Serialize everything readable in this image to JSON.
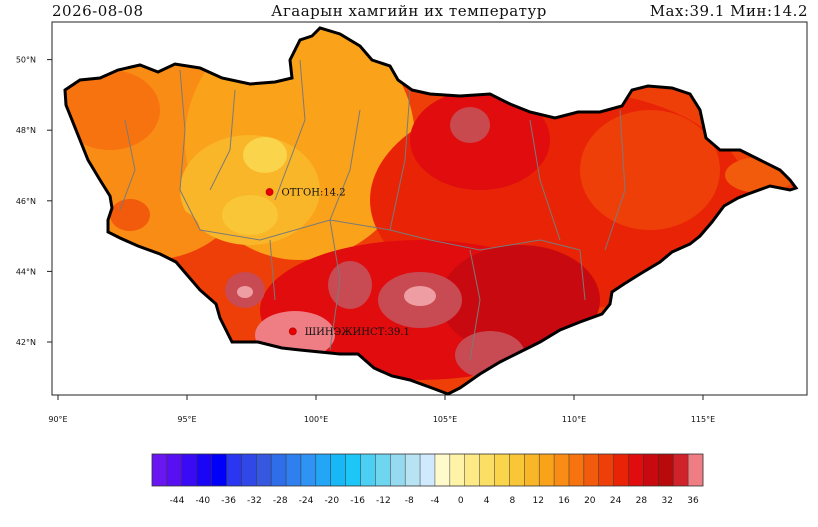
{
  "header": {
    "date": "2026-08-08",
    "title": "Агаарын хамгийн их температур",
    "stats": "Max:39.1 Мин:14.2"
  },
  "map": {
    "lon_ticks": [
      {
        "value": 90,
        "label": "90°E"
      },
      {
        "value": 95,
        "label": "95°E"
      },
      {
        "value": 100,
        "label": "100°E"
      },
      {
        "value": 105,
        "label": "105°E"
      },
      {
        "value": 110,
        "label": "110°E"
      },
      {
        "value": 115,
        "label": "115°E"
      }
    ],
    "lat_ticks": [
      {
        "value": 42,
        "label": "42°N"
      },
      {
        "value": 44,
        "label": "44°N"
      },
      {
        "value": 46,
        "label": "46°N"
      },
      {
        "value": 48,
        "label": "48°N"
      },
      {
        "value": 50,
        "label": "50°N"
      }
    ],
    "stations": [
      {
        "name": "ОТГОН",
        "value": "14.2",
        "label": "ОТГОН:14.2",
        "lon": 98.2,
        "lat": 46.25
      },
      {
        "name": "ШИНЭЖИНСТ",
        "value": "39.1",
        "label": "ШИНЭЖИНСТ:39.1",
        "lon": 99.1,
        "lat": 42.3
      }
    ]
  },
  "colorbar": {
    "labels": [
      "-44",
      "-40",
      "-36",
      "-32",
      "-28",
      "-24",
      "-20",
      "-16",
      "-12",
      "-8",
      "-4",
      "0",
      "4",
      "8",
      "12",
      "16",
      "20",
      "24",
      "28",
      "32",
      "36"
    ],
    "colors": [
      "#6a16f0",
      "#5810f2",
      "#3a0af4",
      "#1b05f6",
      "#0000f8",
      "#2a36ef",
      "#3148e8",
      "#3558df",
      "#2f6ee9",
      "#2f80ee",
      "#2e93f2",
      "#22a6f5",
      "#17b8f5",
      "#1cc6f6",
      "#4ccff3",
      "#6fd6f0",
      "#95daf0",
      "#b8e3f3",
      "#cfeafc",
      "#fffacc",
      "#fff3a8",
      "#fde985",
      "#fbdf64",
      "#fad44a",
      "#f9c638",
      "#f9b628",
      "#f9a21a",
      "#f98c14",
      "#f7730f",
      "#f25a0c",
      "#ef3f08",
      "#e92306",
      "#e00c0e",
      "#c80a10",
      "#b80a0a",
      "#d0222a",
      "#ee7d84"
    ]
  }
}
